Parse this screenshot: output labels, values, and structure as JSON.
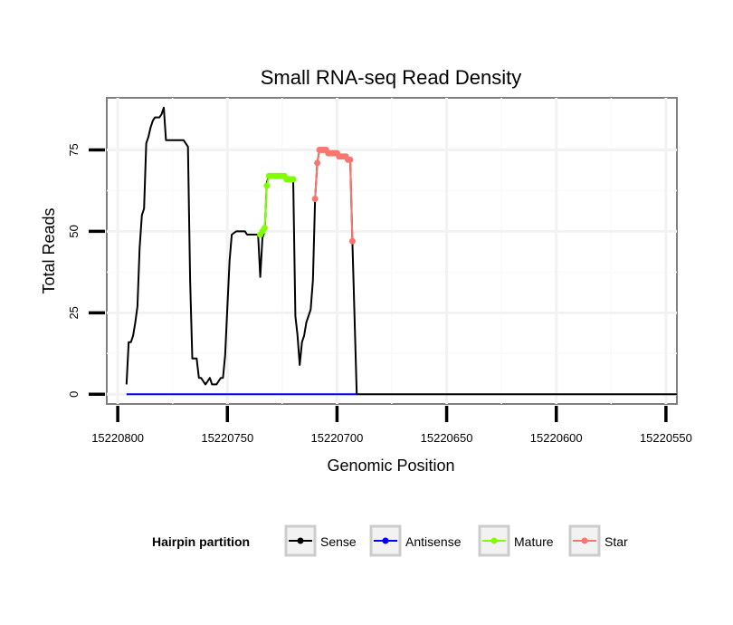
{
  "chart_data": {
    "type": "line",
    "title": "Small RNA-seq Read Density",
    "xlabel": "Genomic Position",
    "ylabel": "Total Reads",
    "x_reversed": true,
    "xlim": [
      15220805,
      15220545
    ],
    "ylim": [
      -3,
      91
    ],
    "xticks": [
      15220800,
      15220750,
      15220700,
      15220650,
      15220600,
      15220550
    ],
    "xtick_labels": [
      "15220800",
      "15220750",
      "15220700",
      "15220650",
      "15220600",
      "15220550"
    ],
    "yticks": [
      0,
      25,
      50,
      75
    ],
    "ytick_labels": [
      "0",
      "25",
      "50",
      "75"
    ],
    "grid": true,
    "legend": {
      "title": "Hairpin partition",
      "placement": "bottom",
      "entries": [
        {
          "label": "Sense",
          "color": "#000000"
        },
        {
          "label": "Antisense",
          "color": "#0000ff"
        },
        {
          "label": "Mature",
          "color": "#7fff00"
        },
        {
          "label": "Star",
          "color": "#f8766d"
        }
      ]
    },
    "series": [
      {
        "name": "Sense",
        "color": "#000000",
        "markers": false,
        "points": [
          [
            15220796,
            3
          ],
          [
            15220795,
            16
          ],
          [
            15220794,
            16
          ],
          [
            15220793,
            18
          ],
          [
            15220792,
            22
          ],
          [
            15220791,
            27
          ],
          [
            15220790,
            45
          ],
          [
            15220789,
            55
          ],
          [
            15220788,
            57
          ],
          [
            15220787,
            77
          ],
          [
            15220786,
            79
          ],
          [
            15220785,
            82
          ],
          [
            15220784,
            84
          ],
          [
            15220783,
            85
          ],
          [
            15220782,
            85
          ],
          [
            15220781,
            85
          ],
          [
            15220780,
            86
          ],
          [
            15220779,
            88
          ],
          [
            15220778,
            78
          ],
          [
            15220777,
            78
          ],
          [
            15220776,
            78
          ],
          [
            15220772,
            78
          ],
          [
            15220770,
            78
          ],
          [
            15220768,
            76
          ],
          [
            15220767,
            35
          ],
          [
            15220766,
            11
          ],
          [
            15220764,
            11
          ],
          [
            15220763,
            5
          ],
          [
            15220762,
            5
          ],
          [
            15220761,
            4
          ],
          [
            15220760,
            3
          ],
          [
            15220759,
            4
          ],
          [
            15220758,
            5
          ],
          [
            15220757,
            3
          ],
          [
            15220755,
            3
          ],
          [
            15220754,
            4
          ],
          [
            15220753,
            5
          ],
          [
            15220752,
            5
          ],
          [
            15220751,
            12
          ],
          [
            15220750,
            27
          ],
          [
            15220749,
            41
          ],
          [
            15220748,
            49
          ],
          [
            15220746,
            50
          ],
          [
            15220742,
            50
          ],
          [
            15220741,
            49
          ],
          [
            15220737,
            49
          ],
          [
            15220736,
            49
          ],
          [
            15220735,
            36
          ],
          [
            15220734,
            48
          ],
          [
            15220733,
            50
          ],
          [
            15220732,
            65
          ],
          [
            15220731,
            67
          ],
          [
            15220724,
            67
          ],
          [
            15220723,
            66
          ],
          [
            15220720,
            66
          ],
          [
            15220719,
            24
          ],
          [
            15220718,
            18
          ],
          [
            15220717,
            9
          ],
          [
            15220716,
            16
          ],
          [
            15220715,
            18
          ],
          [
            15220714,
            22
          ],
          [
            15220713,
            24
          ],
          [
            15220712,
            26
          ],
          [
            15220711,
            35
          ],
          [
            15220710,
            60
          ],
          [
            15220709,
            71
          ],
          [
            15220708,
            75
          ],
          [
            15220707,
            75
          ],
          [
            15220705,
            75
          ],
          [
            15220704,
            74
          ],
          [
            15220700,
            74
          ],
          [
            15220699,
            73
          ],
          [
            15220696,
            73
          ],
          [
            15220695,
            72
          ],
          [
            15220694,
            72
          ],
          [
            15220693,
            47
          ],
          [
            15220691,
            0
          ],
          [
            15220545,
            0
          ]
        ]
      },
      {
        "name": "Antisense",
        "color": "#0000ff",
        "markers": false,
        "points": [
          [
            15220796,
            0
          ],
          [
            15220691,
            0
          ]
        ]
      },
      {
        "name": "Mature",
        "color": "#7fff00",
        "markers": true,
        "points": [
          [
            15220735,
            49
          ],
          [
            15220734,
            50
          ],
          [
            15220733,
            51
          ],
          [
            15220732,
            64
          ],
          [
            15220731,
            67
          ],
          [
            15220730,
            67
          ],
          [
            15220729,
            67
          ],
          [
            15220728,
            67
          ],
          [
            15220727,
            67
          ],
          [
            15220726,
            67
          ],
          [
            15220725,
            67
          ],
          [
            15220724,
            67
          ],
          [
            15220723,
            66
          ],
          [
            15220722,
            66
          ],
          [
            15220721,
            66
          ],
          [
            15220720,
            66
          ]
        ]
      },
      {
        "name": "Star",
        "color": "#f8766d",
        "markers": true,
        "points": [
          [
            15220710,
            60
          ],
          [
            15220709,
            71
          ],
          [
            15220708,
            75
          ],
          [
            15220707,
            75
          ],
          [
            15220706,
            75
          ],
          [
            15220705,
            75
          ],
          [
            15220704,
            74
          ],
          [
            15220703,
            74
          ],
          [
            15220702,
            74
          ],
          [
            15220701,
            74
          ],
          [
            15220700,
            74
          ],
          [
            15220699,
            73
          ],
          [
            15220698,
            73
          ],
          [
            15220697,
            73
          ],
          [
            15220696,
            73
          ],
          [
            15220695,
            72
          ],
          [
            15220694,
            72
          ],
          [
            15220693,
            47
          ]
        ]
      }
    ]
  }
}
